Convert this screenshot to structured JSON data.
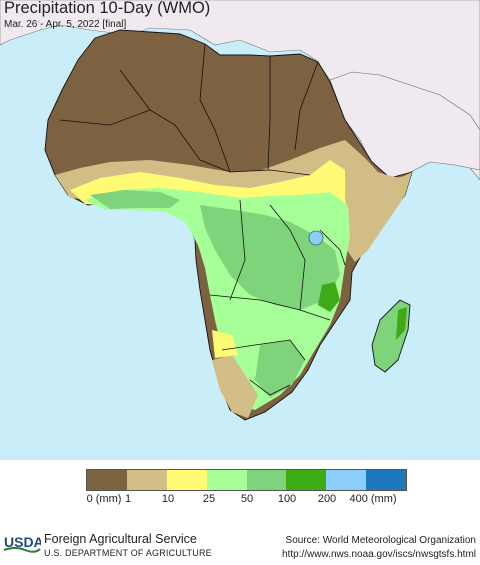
{
  "header": {
    "title": "Precipitation 10-Day (WMO)",
    "subtitle": "Mar. 26 - Apr. 5, 2022 [final]"
  },
  "map": {
    "region": "Africa",
    "ocean_color": "#c9eefa",
    "outside_land_color": "#f0eaf0",
    "border_color": "#111111"
  },
  "legend": {
    "unit": "(mm)",
    "colors": [
      "#7d6242",
      "#d3bd86",
      "#fffb74",
      "#a7ff98",
      "#7fd37a",
      "#3cab16",
      "#8ccdfb",
      "#1b79bc"
    ],
    "tick_labels": [
      "0 (mm)",
      "1",
      "10",
      "25",
      "50",
      "100",
      "200",
      "400 (mm)"
    ]
  },
  "footer": {
    "logo_text": "USDA",
    "agency": "Foreign Agricultural Service",
    "department": "U.S. DEPARTMENT OF AGRICULTURE",
    "source": "Source: World Meteorological Organization",
    "url": "http://www.nws.noaa.gov/iscs/nwsgtsfs.html"
  }
}
